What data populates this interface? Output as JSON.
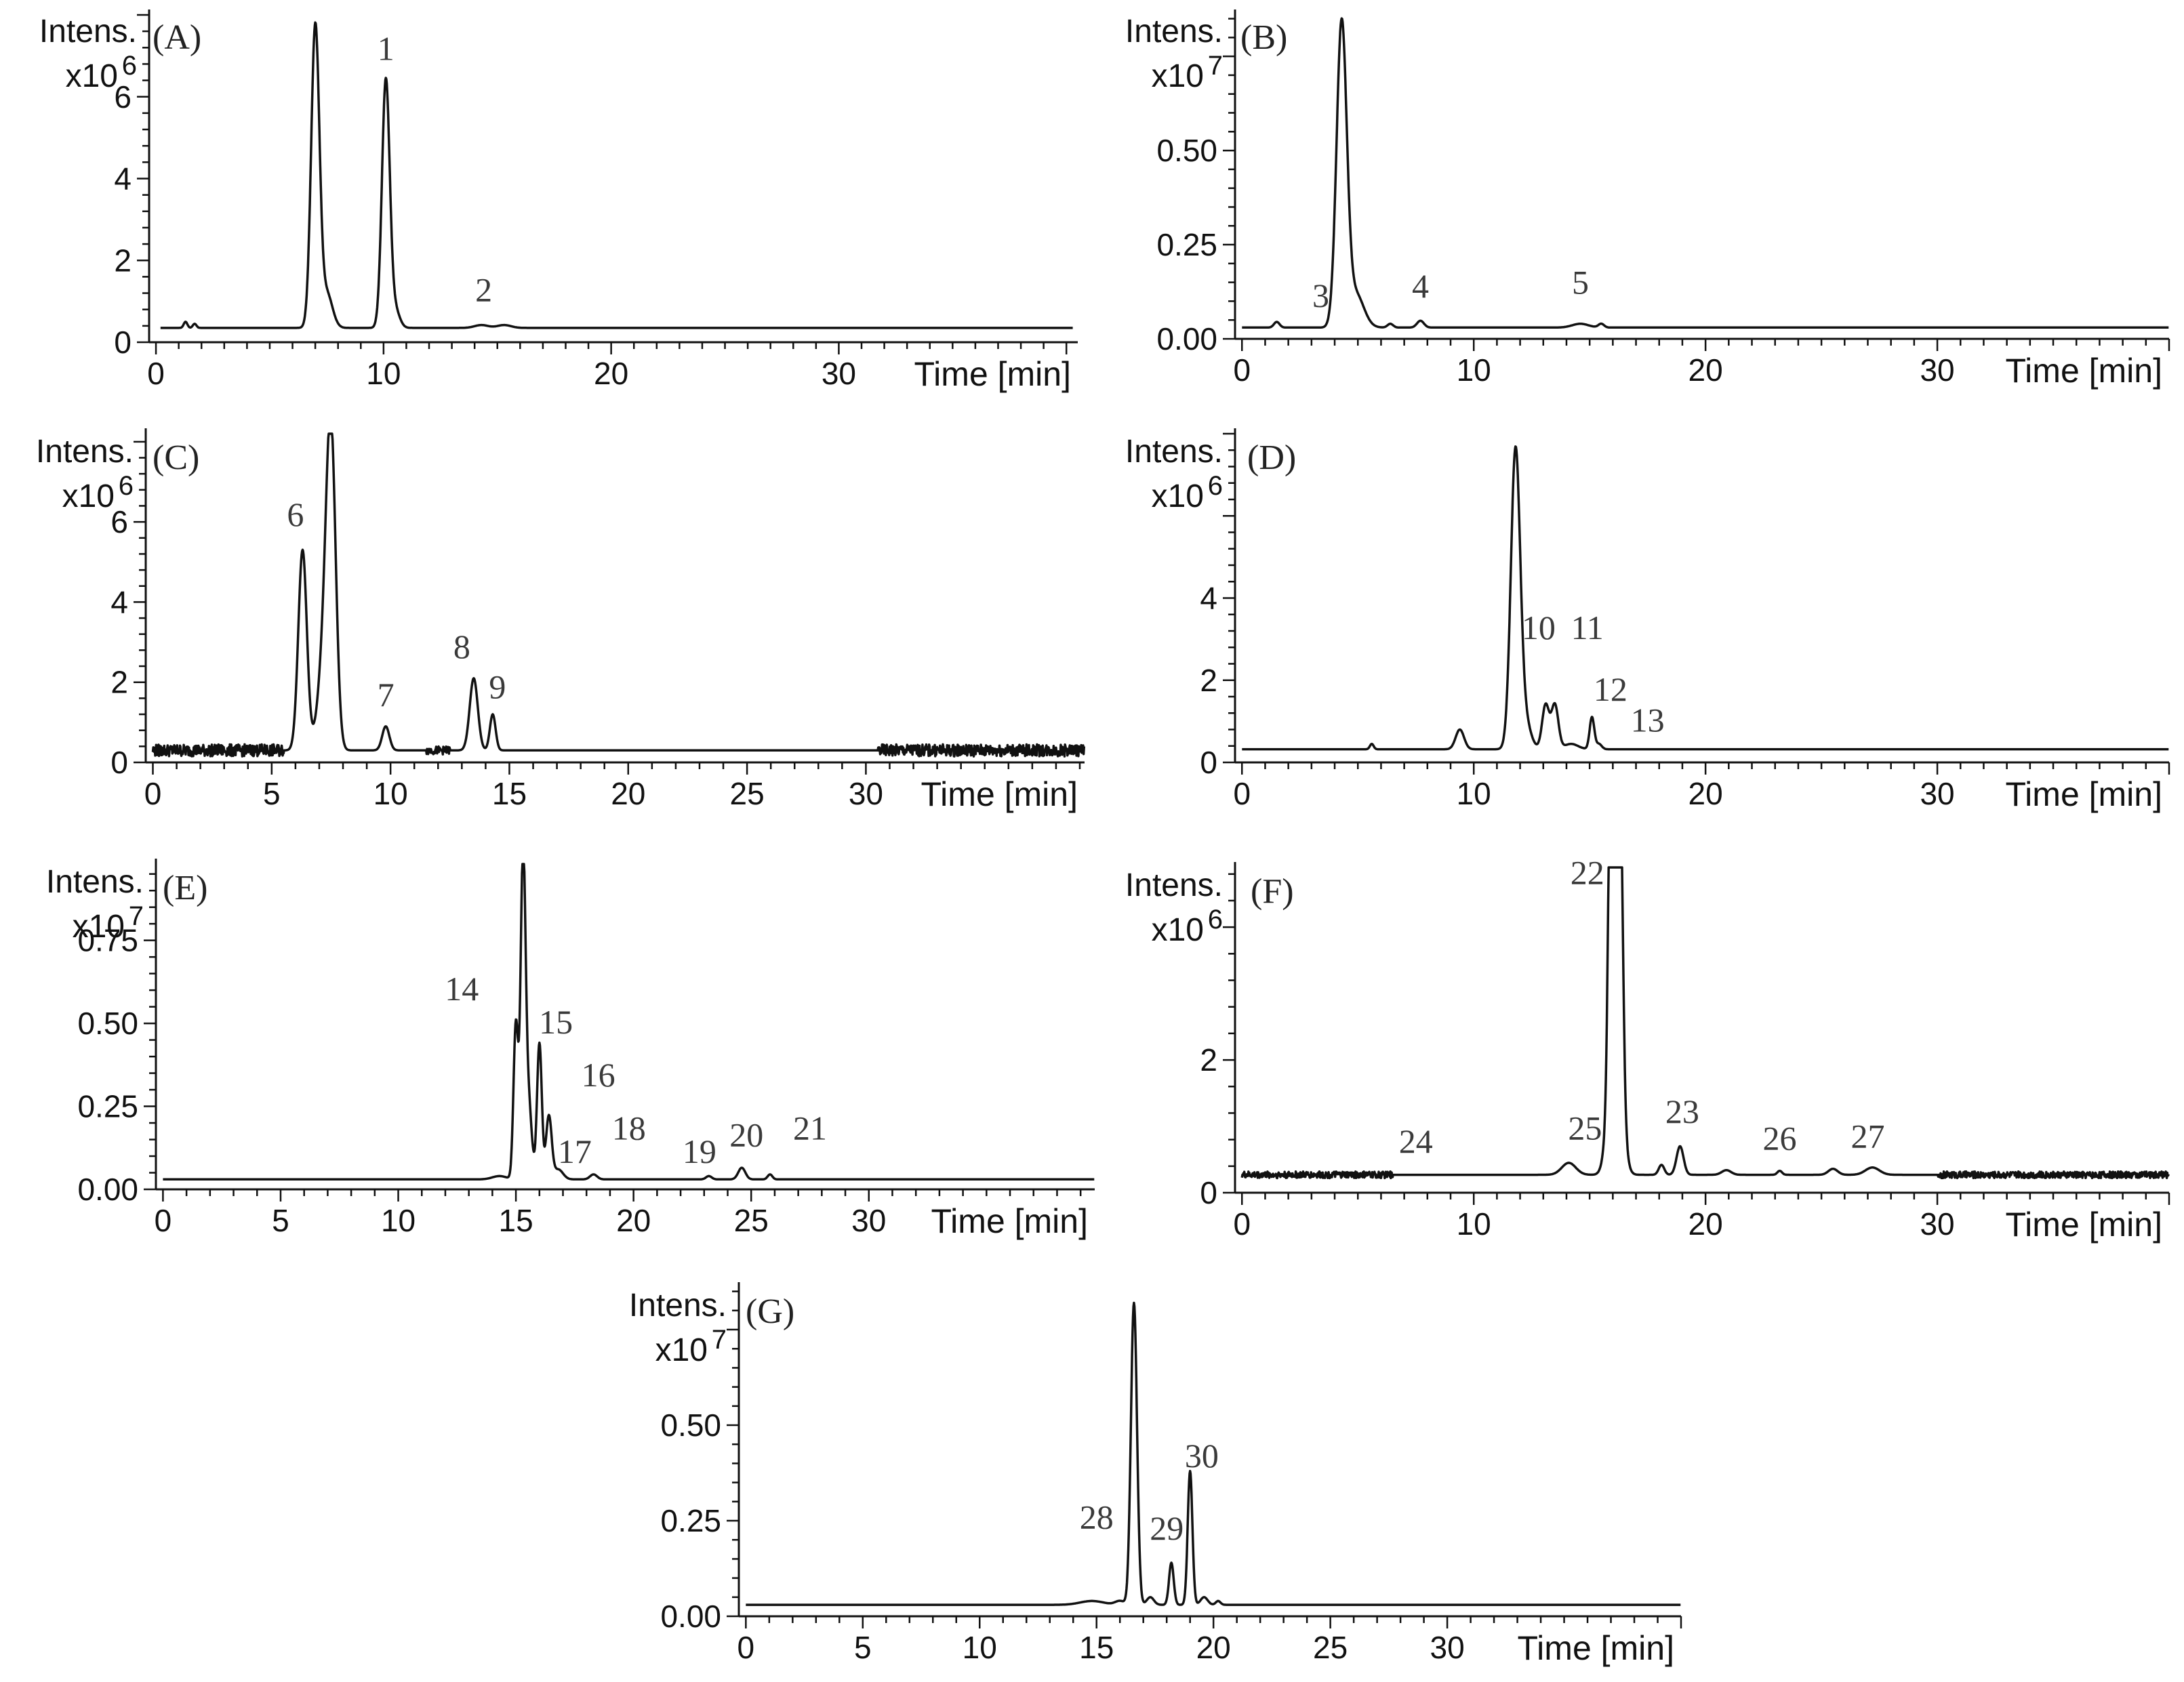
{
  "chart_data": [
    {
      "type": "line",
      "panel_label": "(A)",
      "ylabel": "Intens.",
      "yexp_base": "x10",
      "yexp_power": "6",
      "xlabel": "Time [min]",
      "xlim": [
        -0.3,
        40.5
      ],
      "ylim": [
        0,
        8.0
      ],
      "xticks": [
        0,
        10,
        20,
        30
      ],
      "xtick_labels": [
        "0",
        "10",
        "20",
        "30"
      ],
      "yticks": [
        0,
        2,
        4,
        6
      ],
      "ytick_labels": [
        "0",
        "2",
        "4",
        "6"
      ],
      "baseline": 0.35,
      "segments": [
        [
          0.2,
          40.3
        ]
      ],
      "peaks": [
        {
          "t": 1.3,
          "h": 0.5,
          "w": 0.08
        },
        {
          "t": 1.7,
          "h": 0.45,
          "w": 0.08
        },
        {
          "t": 7.0,
          "h": 7.7,
          "w": 0.18
        },
        {
          "t": 7.5,
          "h": 1.2,
          "w": 0.25
        },
        {
          "t": 10.1,
          "h": 6.4,
          "w": 0.17
        },
        {
          "t": 10.5,
          "h": 0.8,
          "w": 0.2
        },
        {
          "t": 14.3,
          "h": 0.42,
          "w": 0.3
        },
        {
          "t": 15.3,
          "h": 0.42,
          "w": 0.3
        }
      ],
      "noise": [],
      "peak_labels": [
        {
          "label": "1",
          "t": 10.1,
          "v": 6.9
        },
        {
          "label": "2",
          "t": 14.4,
          "v": 1.0
        }
      ]
    },
    {
      "type": "line",
      "panel_label": "(B)",
      "ylabel": "Intens.",
      "yexp_base": "x10",
      "yexp_power": "7",
      "xlabel": "Time [min]",
      "xlim": [
        -0.3,
        40.0
      ],
      "ylim": [
        0,
        0.86
      ],
      "xticks": [
        0,
        10,
        20,
        30
      ],
      "xtick_labels": [
        "0",
        "10",
        "20",
        "30"
      ],
      "yticks": [
        0.0,
        0.25,
        0.5
      ],
      "ytick_labels": [
        "0.00",
        "0.25",
        "0.50"
      ],
      "baseline": 0.03,
      "segments": [
        [
          0.0,
          40.0
        ]
      ],
      "peaks": [
        {
          "t": 1.5,
          "h": 0.045,
          "w": 0.12
        },
        {
          "t": 4.3,
          "h": 0.83,
          "w": 0.22
        },
        {
          "t": 4.9,
          "h": 0.12,
          "w": 0.35
        },
        {
          "t": 6.4,
          "h": 0.04,
          "w": 0.12
        },
        {
          "t": 7.7,
          "h": 0.048,
          "w": 0.15
        },
        {
          "t": 14.6,
          "h": 0.04,
          "w": 0.35
        },
        {
          "t": 15.5,
          "h": 0.04,
          "w": 0.12
        }
      ],
      "noise": [],
      "peak_labels": [
        {
          "label": "3",
          "t": 3.4,
          "v": 0.085
        },
        {
          "label": "4",
          "t": 7.7,
          "v": 0.11
        },
        {
          "label": "5",
          "t": 14.6,
          "v": 0.12
        }
      ]
    },
    {
      "type": "line",
      "panel_label": "(C)",
      "ylabel": "Intens.",
      "yexp_base": "x10",
      "yexp_power": "6",
      "xlabel": "Time [min]",
      "xlim": [
        -0.3,
        39.2
      ],
      "ylim": [
        0,
        8.2
      ],
      "xticks": [
        0,
        5,
        10,
        15,
        20,
        25,
        30
      ],
      "xtick_labels": [
        "0",
        "5",
        "10",
        "15",
        "20",
        "25",
        "30"
      ],
      "yticks": [
        0,
        2,
        4,
        6
      ],
      "ytick_labels": [
        "0",
        "2",
        "4",
        "6"
      ],
      "baseline": 0.3,
      "segments": [
        [
          0.0,
          39.2
        ]
      ],
      "peaks": [
        {
          "t": 6.3,
          "h": 5.3,
          "w": 0.18
        },
        {
          "t": 7.5,
          "h": 7.6,
          "w": 0.2
        },
        {
          "t": 7.2,
          "h": 2.5,
          "w": 0.25
        },
        {
          "t": 9.8,
          "h": 0.9,
          "w": 0.15
        },
        {
          "t": 13.5,
          "h": 2.1,
          "w": 0.17
        },
        {
          "t": 14.3,
          "h": 1.2,
          "w": 0.12
        }
      ],
      "noise": [
        [
          0.0,
          5.5,
          0.15
        ],
        [
          11.5,
          12.5,
          0.1
        ],
        [
          30.5,
          39.2,
          0.15
        ]
      ],
      "peak_labels": [
        {
          "label": "6",
          "t": 6.0,
          "v": 5.9
        },
        {
          "label": "7",
          "t": 9.8,
          "v": 1.4
        },
        {
          "label": "8",
          "t": 13.0,
          "v": 2.6
        },
        {
          "label": "9",
          "t": 14.5,
          "v": 1.6
        }
      ]
    },
    {
      "type": "line",
      "panel_label": "(D)",
      "ylabel": "Intens.",
      "yexp_base": "x10",
      "yexp_power": "6",
      "xlabel": "Time [min]",
      "xlim": [
        -0.3,
        40.0
      ],
      "ylim": [
        0,
        8.0
      ],
      "xticks": [
        0,
        10,
        20,
        30
      ],
      "xtick_labels": [
        "0",
        "10",
        "20",
        "30"
      ],
      "yticks": [
        0,
        2,
        4
      ],
      "ytick_labels": [
        "0",
        "2",
        "4"
      ],
      "baseline": 0.32,
      "segments": [
        [
          0.0,
          40.0
        ]
      ],
      "peaks": [
        {
          "t": 5.6,
          "h": 0.45,
          "w": 0.08
        },
        {
          "t": 9.4,
          "h": 0.8,
          "w": 0.18
        },
        {
          "t": 11.8,
          "h": 7.5,
          "w": 0.2
        },
        {
          "t": 12.2,
          "h": 1.0,
          "w": 0.25
        },
        {
          "t": 13.1,
          "h": 1.4,
          "w": 0.15
        },
        {
          "t": 13.5,
          "h": 1.4,
          "w": 0.15
        },
        {
          "t": 14.2,
          "h": 0.45,
          "w": 0.3
        },
        {
          "t": 15.1,
          "h": 1.1,
          "w": 0.1
        },
        {
          "t": 15.4,
          "h": 0.45,
          "w": 0.12
        }
      ],
      "noise": [],
      "peak_labels": [
        {
          "label": "10",
          "t": 12.8,
          "v": 3.0
        },
        {
          "label": "11",
          "t": 14.9,
          "v": 3.0
        },
        {
          "label": "12",
          "t": 15.9,
          "v": 1.5
        },
        {
          "label": "13",
          "t": 17.5,
          "v": 0.75
        }
      ]
    },
    {
      "type": "line",
      "panel_label": "(E)",
      "ylabel": "Intens.",
      "yexp_base": "x10",
      "yexp_power": "7",
      "xlabel": "Time [min]",
      "xlim": [
        -0.3,
        39.6
      ],
      "ylim": [
        0,
        0.98
      ],
      "xticks": [
        0,
        5,
        10,
        15,
        20,
        25,
        30
      ],
      "xtick_labels": [
        "0",
        "5",
        "10",
        "15",
        "20",
        "25",
        "30"
      ],
      "yticks": [
        0.0,
        0.25,
        0.5,
        0.75
      ],
      "ytick_labels": [
        "0.00",
        "0.25",
        "0.50",
        "0.75"
      ],
      "baseline": 0.03,
      "segments": [
        [
          0.0,
          39.6
        ]
      ],
      "peaks": [
        {
          "t": 14.3,
          "h": 0.04,
          "w": 0.3
        },
        {
          "t": 15.0,
          "h": 0.5,
          "w": 0.1
        },
        {
          "t": 15.3,
          "h": 0.93,
          "w": 0.1
        },
        {
          "t": 15.5,
          "h": 0.3,
          "w": 0.15
        },
        {
          "t": 16.0,
          "h": 0.44,
          "w": 0.1
        },
        {
          "t": 16.4,
          "h": 0.22,
          "w": 0.12
        },
        {
          "t": 16.8,
          "h": 0.06,
          "w": 0.2
        },
        {
          "t": 18.3,
          "h": 0.045,
          "w": 0.15
        },
        {
          "t": 23.2,
          "h": 0.04,
          "w": 0.12
        },
        {
          "t": 24.6,
          "h": 0.065,
          "w": 0.15
        },
        {
          "t": 25.8,
          "h": 0.045,
          "w": 0.1
        }
      ],
      "noise": [],
      "peak_labels": [
        {
          "label": "14",
          "t": 12.7,
          "v": 0.57
        },
        {
          "label": "15",
          "t": 16.7,
          "v": 0.47
        },
        {
          "label": "16",
          "t": 18.5,
          "v": 0.31
        },
        {
          "label": "17",
          "t": 17.5,
          "v": 0.08
        },
        {
          "label": "18",
          "t": 19.8,
          "v": 0.15
        },
        {
          "label": "19",
          "t": 22.8,
          "v": 0.08
        },
        {
          "label": "20",
          "t": 24.8,
          "v": 0.13
        },
        {
          "label": "21",
          "t": 27.5,
          "v": 0.15
        }
      ]
    },
    {
      "type": "line",
      "panel_label": "(F)",
      "ylabel": "Intens.",
      "yexp_base": "x10",
      "yexp_power": "6",
      "xlabel": "Time [min]",
      "xlim": [
        -0.3,
        40.0
      ],
      "ylim": [
        0,
        4.9
      ],
      "xticks": [
        0,
        10,
        20,
        30
      ],
      "xtick_labels": [
        "0",
        "10",
        "20",
        "30"
      ],
      "yticks": [
        0,
        2
      ],
      "ytick_labels": [
        "0",
        "2"
      ],
      "baseline": 0.27,
      "segments": [
        [
          0.0,
          40.0
        ]
      ],
      "peaks": [
        {
          "t": 14.1,
          "h": 0.45,
          "w": 0.3
        },
        {
          "t": 15.9,
          "h": 4.5,
          "w": 0.1
        },
        {
          "t": 16.3,
          "h": 4.7,
          "w": 0.12
        },
        {
          "t": 16.1,
          "h": 3.4,
          "w": 0.25
        },
        {
          "t": 18.1,
          "h": 0.42,
          "w": 0.12
        },
        {
          "t": 18.9,
          "h": 0.7,
          "w": 0.15
        },
        {
          "t": 20.9,
          "h": 0.34,
          "w": 0.2
        },
        {
          "t": 23.2,
          "h": 0.33,
          "w": 0.1
        },
        {
          "t": 25.5,
          "h": 0.36,
          "w": 0.2
        },
        {
          "t": 27.2,
          "h": 0.38,
          "w": 0.3
        }
      ],
      "noise": [
        [
          0.0,
          6.5,
          0.05
        ],
        [
          30.0,
          40.0,
          0.05
        ]
      ],
      "peak_labels": [
        {
          "label": "22",
          "t": 14.9,
          "v": 4.65
        },
        {
          "label": "23",
          "t": 19.0,
          "v": 1.05
        },
        {
          "label": "24",
          "t": 7.5,
          "v": 0.6
        },
        {
          "label": "25",
          "t": 14.8,
          "v": 0.8
        },
        {
          "label": "26",
          "t": 23.2,
          "v": 0.65
        },
        {
          "label": "27",
          "t": 27.0,
          "v": 0.68
        }
      ]
    },
    {
      "type": "line",
      "panel_label": "(G)",
      "ylabel": "Intens.",
      "yexp_base": "x10",
      "yexp_power": "7",
      "xlabel": "Time [min]",
      "xlim": [
        -0.3,
        40.0
      ],
      "ylim": [
        0,
        0.86
      ],
      "xticks": [
        0,
        5,
        10,
        15,
        20,
        25,
        30
      ],
      "xtick_labels": [
        "0",
        "5",
        "10",
        "15",
        "20",
        "25",
        "30"
      ],
      "yticks": [
        0.0,
        0.25,
        0.5
      ],
      "ytick_labels": [
        "0.00",
        "0.25",
        "0.50"
      ],
      "baseline": 0.03,
      "segments": [
        [
          0.0,
          40.0
        ]
      ],
      "peaks": [
        {
          "t": 14.8,
          "h": 0.04,
          "w": 0.5
        },
        {
          "t": 16.0,
          "h": 0.04,
          "w": 0.2
        },
        {
          "t": 16.6,
          "h": 0.82,
          "w": 0.13
        },
        {
          "t": 17.3,
          "h": 0.05,
          "w": 0.15
        },
        {
          "t": 18.2,
          "h": 0.14,
          "w": 0.1
        },
        {
          "t": 19.0,
          "h": 0.38,
          "w": 0.1
        },
        {
          "t": 19.6,
          "h": 0.05,
          "w": 0.15
        },
        {
          "t": 20.2,
          "h": 0.04,
          "w": 0.1
        }
      ],
      "noise": [],
      "peak_labels": [
        {
          "label": "28",
          "t": 15.0,
          "v": 0.23
        },
        {
          "label": "29",
          "t": 18.0,
          "v": 0.2
        },
        {
          "label": "30",
          "t": 19.5,
          "v": 0.39
        }
      ]
    }
  ]
}
